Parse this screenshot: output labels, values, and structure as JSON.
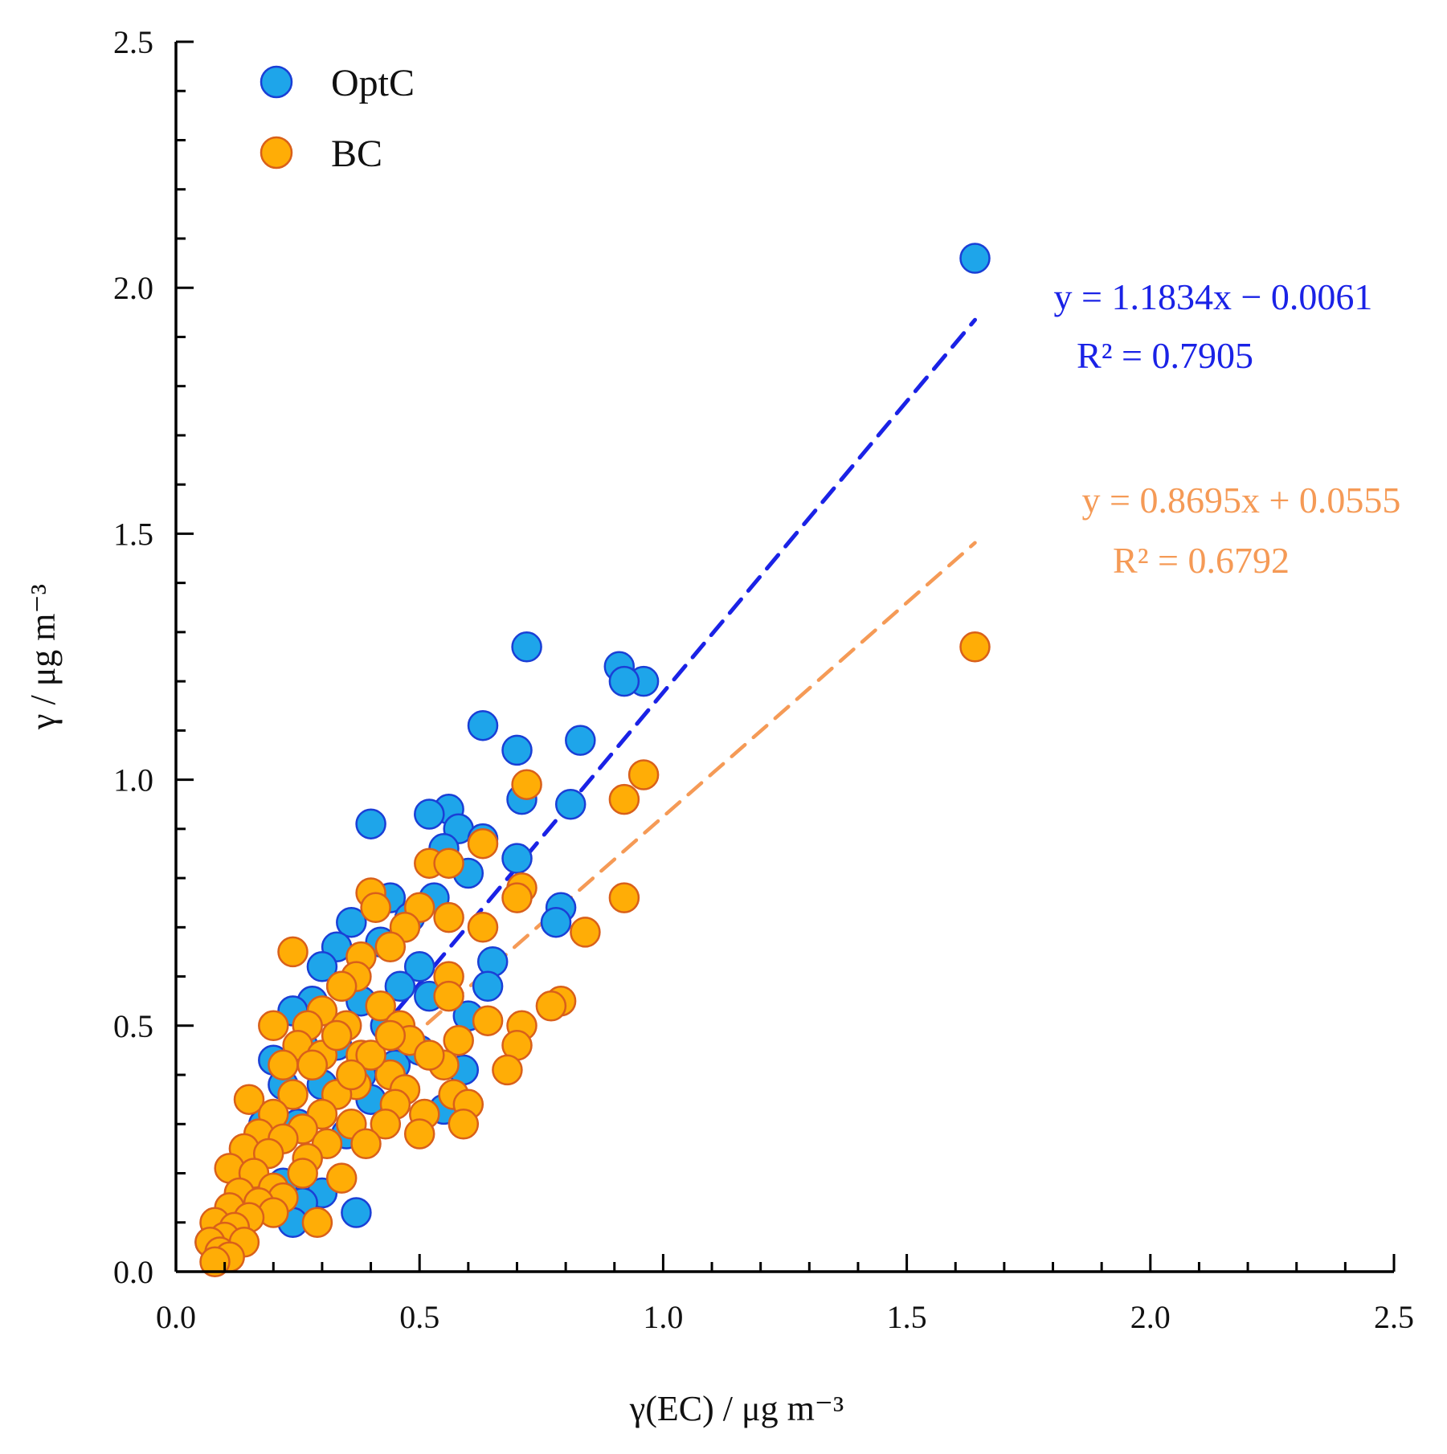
{
  "chart_data": {
    "type": "scatter",
    "xlabel": "γ(EC) / μg m⁻³",
    "ylabel": "γ / μg m⁻³",
    "xlim": [
      0,
      2.5
    ],
    "ylim": [
      0,
      2.5
    ],
    "x_ticks": [
      "0.0",
      "0.5",
      "1.0",
      "1.5",
      "2.0",
      "2.5"
    ],
    "y_ticks": [
      "0.0",
      "0.5",
      "1.0",
      "1.5",
      "2.0",
      "2.5"
    ],
    "x_tick_values": [
      0,
      0.5,
      1.0,
      1.5,
      2.0,
      2.5
    ],
    "y_tick_values": [
      0,
      0.5,
      1.0,
      1.5,
      2.0,
      2.5
    ],
    "legend_position": "top-left",
    "grid": false,
    "series": [
      {
        "name": "OptC",
        "color": "#1ea5ea",
        "edge_color": "#1a3fd6",
        "points": [
          [
            1.64,
            2.06
          ],
          [
            0.72,
            1.27
          ],
          [
            0.91,
            1.23
          ],
          [
            0.96,
            1.2
          ],
          [
            0.92,
            1.2
          ],
          [
            0.63,
            1.11
          ],
          [
            0.83,
            1.08
          ],
          [
            0.7,
            1.06
          ],
          [
            0.71,
            0.96
          ],
          [
            0.81,
            0.95
          ],
          [
            0.4,
            0.91
          ],
          [
            0.56,
            0.94
          ],
          [
            0.52,
            0.93
          ],
          [
            0.58,
            0.9
          ],
          [
            0.63,
            0.88
          ],
          [
            0.55,
            0.86
          ],
          [
            0.7,
            0.84
          ],
          [
            0.6,
            0.81
          ],
          [
            0.79,
            0.74
          ],
          [
            0.78,
            0.71
          ],
          [
            0.36,
            0.71
          ],
          [
            0.44,
            0.76
          ],
          [
            0.53,
            0.76
          ],
          [
            0.48,
            0.72
          ],
          [
            0.33,
            0.66
          ],
          [
            0.42,
            0.67
          ],
          [
            0.5,
            0.62
          ],
          [
            0.65,
            0.63
          ],
          [
            0.64,
            0.58
          ],
          [
            0.3,
            0.62
          ],
          [
            0.34,
            0.58
          ],
          [
            0.46,
            0.58
          ],
          [
            0.28,
            0.55
          ],
          [
            0.24,
            0.53
          ],
          [
            0.38,
            0.55
          ],
          [
            0.52,
            0.56
          ],
          [
            0.6,
            0.52
          ],
          [
            0.43,
            0.5
          ],
          [
            0.2,
            0.43
          ],
          [
            0.26,
            0.46
          ],
          [
            0.33,
            0.46
          ],
          [
            0.59,
            0.41
          ],
          [
            0.22,
            0.38
          ],
          [
            0.3,
            0.38
          ],
          [
            0.4,
            0.35
          ],
          [
            0.55,
            0.33
          ],
          [
            0.18,
            0.3
          ],
          [
            0.25,
            0.3
          ],
          [
            0.35,
            0.28
          ],
          [
            0.16,
            0.22
          ],
          [
            0.22,
            0.18
          ],
          [
            0.3,
            0.16
          ],
          [
            0.26,
            0.14
          ],
          [
            0.37,
            0.12
          ],
          [
            0.13,
            0.12
          ],
          [
            0.24,
            0.1
          ],
          [
            0.1,
            0.08
          ],
          [
            0.07,
            0.06
          ],
          [
            0.09,
            0.05
          ],
          [
            0.45,
            0.42
          ],
          [
            0.5,
            0.45
          ],
          [
            0.38,
            0.4
          ]
        ]
      },
      {
        "name": "BC",
        "color": "#ffad06",
        "edge_color": "#d9601a",
        "points": [
          [
            1.64,
            1.27
          ],
          [
            0.72,
            0.99
          ],
          [
            0.96,
            1.01
          ],
          [
            0.92,
            0.96
          ],
          [
            0.92,
            0.76
          ],
          [
            0.84,
            0.69
          ],
          [
            0.63,
            0.87
          ],
          [
            0.52,
            0.83
          ],
          [
            0.56,
            0.83
          ],
          [
            0.71,
            0.78
          ],
          [
            0.7,
            0.76
          ],
          [
            0.4,
            0.77
          ],
          [
            0.41,
            0.74
          ],
          [
            0.5,
            0.74
          ],
          [
            0.56,
            0.72
          ],
          [
            0.47,
            0.7
          ],
          [
            0.63,
            0.7
          ],
          [
            0.24,
            0.65
          ],
          [
            0.38,
            0.64
          ],
          [
            0.44,
            0.66
          ],
          [
            0.37,
            0.6
          ],
          [
            0.34,
            0.58
          ],
          [
            0.56,
            0.6
          ],
          [
            0.56,
            0.56
          ],
          [
            0.42,
            0.54
          ],
          [
            0.79,
            0.55
          ],
          [
            0.77,
            0.54
          ],
          [
            0.3,
            0.53
          ],
          [
            0.27,
            0.5
          ],
          [
            0.2,
            0.5
          ],
          [
            0.35,
            0.5
          ],
          [
            0.46,
            0.5
          ],
          [
            0.64,
            0.51
          ],
          [
            0.71,
            0.5
          ],
          [
            0.48,
            0.47
          ],
          [
            0.58,
            0.47
          ],
          [
            0.7,
            0.46
          ],
          [
            0.25,
            0.46
          ],
          [
            0.3,
            0.44
          ],
          [
            0.38,
            0.44
          ],
          [
            0.22,
            0.42
          ],
          [
            0.28,
            0.42
          ],
          [
            0.55,
            0.42
          ],
          [
            0.68,
            0.41
          ],
          [
            0.44,
            0.4
          ],
          [
            0.37,
            0.38
          ],
          [
            0.33,
            0.36
          ],
          [
            0.47,
            0.37
          ],
          [
            0.24,
            0.36
          ],
          [
            0.57,
            0.36
          ],
          [
            0.15,
            0.35
          ],
          [
            0.6,
            0.34
          ],
          [
            0.45,
            0.34
          ],
          [
            0.2,
            0.32
          ],
          [
            0.3,
            0.32
          ],
          [
            0.51,
            0.32
          ],
          [
            0.36,
            0.3
          ],
          [
            0.59,
            0.3
          ],
          [
            0.43,
            0.3
          ],
          [
            0.26,
            0.29
          ],
          [
            0.17,
            0.28
          ],
          [
            0.22,
            0.27
          ],
          [
            0.31,
            0.26
          ],
          [
            0.39,
            0.26
          ],
          [
            0.5,
            0.28
          ],
          [
            0.14,
            0.25
          ],
          [
            0.19,
            0.24
          ],
          [
            0.27,
            0.23
          ],
          [
            0.11,
            0.21
          ],
          [
            0.16,
            0.2
          ],
          [
            0.26,
            0.2
          ],
          [
            0.34,
            0.19
          ],
          [
            0.2,
            0.17
          ],
          [
            0.13,
            0.16
          ],
          [
            0.22,
            0.15
          ],
          [
            0.17,
            0.14
          ],
          [
            0.11,
            0.13
          ],
          [
            0.2,
            0.12
          ],
          [
            0.15,
            0.11
          ],
          [
            0.29,
            0.1
          ],
          [
            0.08,
            0.1
          ],
          [
            0.12,
            0.09
          ],
          [
            0.1,
            0.07
          ],
          [
            0.07,
            0.06
          ],
          [
            0.14,
            0.06
          ],
          [
            0.09,
            0.04
          ],
          [
            0.11,
            0.03
          ],
          [
            0.08,
            0.02
          ],
          [
            0.4,
            0.44
          ],
          [
            0.52,
            0.44
          ],
          [
            0.44,
            0.48
          ],
          [
            0.33,
            0.48
          ],
          [
            0.36,
            0.4
          ]
        ]
      }
    ],
    "fits": [
      {
        "series": "OptC",
        "slope": 1.1834,
        "intercept": -0.0061,
        "x_range": [
          0.07,
          1.64
        ],
        "equation": "y = 1.1834x − 0.0061",
        "r2": "R² = 0.7905",
        "color": "#1a22e6"
      },
      {
        "series": "BC",
        "slope": 0.8695,
        "intercept": 0.0555,
        "x_range": [
          0.07,
          1.64
        ],
        "equation": "y = 0.8695x + 0.0555",
        "r2": "R² = 0.6792",
        "color": "#f59a56"
      }
    ]
  }
}
